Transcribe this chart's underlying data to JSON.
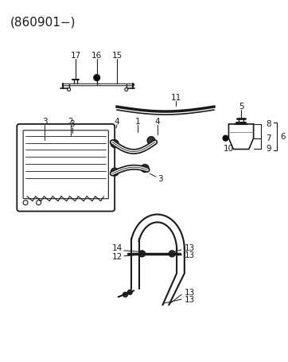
{
  "title": "(860901−)",
  "bg_color": "#ffffff",
  "line_color": "#1a1a1a",
  "title_fontsize": 11,
  "label_fontsize": 7.5,
  "fig_width": 3.62,
  "fig_height": 4.55,
  "dpi": 100
}
